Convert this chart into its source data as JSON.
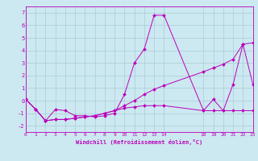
{
  "xlabel": "Windchill (Refroidissement éolien,°C)",
  "background_color": "#cce8f0",
  "grid_color": "#aaccd8",
  "line_color": "#bb00bb",
  "xlim": [
    0,
    23
  ],
  "ylim": [
    -2.5,
    7.5
  ],
  "xticks": [
    0,
    1,
    2,
    3,
    4,
    5,
    6,
    7,
    8,
    9,
    10,
    11,
    12,
    13,
    14,
    18,
    19,
    20,
    21,
    22,
    23
  ],
  "yticks": [
    -2,
    -1,
    0,
    1,
    2,
    3,
    4,
    5,
    6,
    7
  ],
  "lines": [
    {
      "x": [
        0,
        1,
        2,
        3,
        4,
        5,
        6,
        7,
        8,
        9,
        10,
        11,
        12,
        13,
        14,
        18,
        19,
        20,
        21,
        22,
        23
      ],
      "y": [
        0.1,
        -0.7,
        -1.6,
        -0.7,
        -0.8,
        -1.2,
        -1.2,
        -1.3,
        -1.2,
        -1.0,
        0.5,
        3.0,
        4.1,
        6.8,
        6.8,
        -0.8,
        0.1,
        -0.8,
        1.3,
        4.5,
        1.3
      ]
    },
    {
      "x": [
        0,
        1,
        2,
        3,
        4,
        5,
        6,
        7,
        8,
        9,
        10,
        11,
        12,
        13,
        14,
        18,
        19,
        20,
        21,
        22,
        23
      ],
      "y": [
        0.1,
        -0.7,
        -1.6,
        -1.5,
        -1.5,
        -1.4,
        -1.3,
        -1.2,
        -1.0,
        -0.8,
        -0.4,
        0.0,
        0.5,
        0.9,
        1.2,
        2.3,
        2.6,
        2.9,
        3.3,
        4.5,
        4.6
      ]
    },
    {
      "x": [
        0,
        1,
        2,
        3,
        4,
        5,
        6,
        7,
        8,
        9,
        10,
        11,
        12,
        13,
        14,
        18,
        19,
        20,
        21,
        22,
        23
      ],
      "y": [
        0.1,
        -0.7,
        -1.6,
        -1.5,
        -1.5,
        -1.4,
        -1.3,
        -1.2,
        -1.0,
        -0.8,
        -0.6,
        -0.5,
        -0.4,
        -0.4,
        -0.4,
        -0.8,
        -0.8,
        -0.8,
        -0.8,
        -0.8,
        -0.8
      ]
    }
  ]
}
